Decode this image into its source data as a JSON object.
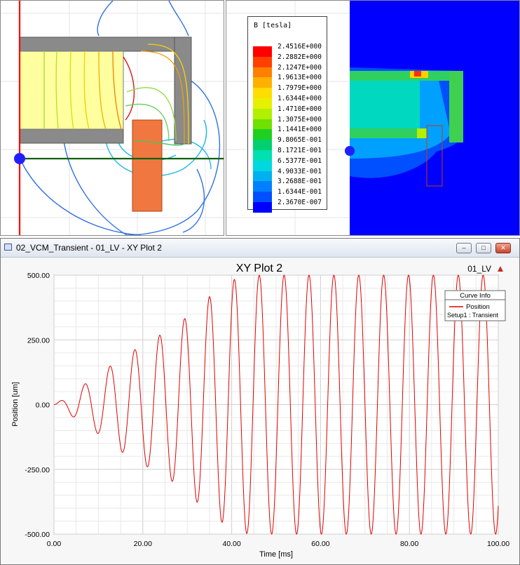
{
  "field_legend": {
    "title": "B [tesla]",
    "entries": [
      {
        "label": "2.4516E+000",
        "color": "#ff0000"
      },
      {
        "label": "2.2882E+000",
        "color": "#ff4000"
      },
      {
        "label": "2.1247E+000",
        "color": "#ff8000"
      },
      {
        "label": "1.9613E+000",
        "color": "#ffb000"
      },
      {
        "label": "1.7979E+000",
        "color": "#ffdd00"
      },
      {
        "label": "1.6344E+000",
        "color": "#e6f000"
      },
      {
        "label": "1.4710E+000",
        "color": "#b0f000"
      },
      {
        "label": "1.3075E+000",
        "color": "#70e000"
      },
      {
        "label": "1.1441E+000",
        "color": "#20d020"
      },
      {
        "label": "9.8065E-001",
        "color": "#00d070"
      },
      {
        "label": "8.1721E-001",
        "color": "#00e0b0"
      },
      {
        "label": "6.5377E-001",
        "color": "#00d8e0"
      },
      {
        "label": "4.9033E-001",
        "color": "#00b0f0"
      },
      {
        "label": "3.2688E-001",
        "color": "#0080ff"
      },
      {
        "label": "1.6344E-001",
        "color": "#0050ff"
      },
      {
        "label": "2.3670E-007",
        "color": "#0000ff"
      }
    ]
  },
  "plot_window": {
    "title": "02_VCM_Transient - 01_LV - XY Plot 2",
    "buttons": {
      "minimize": "–",
      "maximize": "□",
      "close": "✕"
    },
    "plot_title": "XY Plot 2",
    "design_label": "01_LV",
    "curve_info": {
      "header": "Curve Info",
      "name": "Position",
      "setup": "Setup1 : Transient",
      "color": "#e00000"
    }
  },
  "chart_data": {
    "type": "line",
    "title": "XY Plot 2",
    "xlabel": "Time [ms]",
    "ylabel": "Position [um]",
    "xlim": [
      0,
      100
    ],
    "ylim": [
      -500,
      500
    ],
    "x_ticks": [
      "0.00",
      "20.00",
      "40.00",
      "60.00",
      "80.00",
      "100.00"
    ],
    "y_ticks": [
      "500.00",
      "250.00",
      "0.00",
      "-250.00",
      "-500.00"
    ],
    "grid": true,
    "legend": "top-right",
    "series": [
      {
        "name": "Position",
        "color": "#e00000",
        "waveform": {
          "period_ms": 5.6,
          "peaks": [
            {
              "t": 0,
              "amp": 0
            },
            {
              "t": 3,
              "amp": 30
            },
            {
              "t": 6,
              "amp": 70
            },
            {
              "t": 9,
              "amp": 100
            },
            {
              "t": 12,
              "amp": 140
            },
            {
              "t": 15,
              "amp": 180
            },
            {
              "t": 18,
              "amp": 210
            },
            {
              "t": 21,
              "amp": 240
            },
            {
              "t": 24,
              "amp": 270
            },
            {
              "t": 27,
              "amp": 300
            },
            {
              "t": 30,
              "amp": 340
            },
            {
              "t": 33,
              "amp": 390
            },
            {
              "t": 36,
              "amp": 430
            },
            {
              "t": 39,
              "amp": 470
            },
            {
              "t": 42,
              "amp": 495
            },
            {
              "t": 45,
              "amp": 500
            },
            {
              "t": 100,
              "amp": 500
            }
          ]
        }
      }
    ]
  }
}
